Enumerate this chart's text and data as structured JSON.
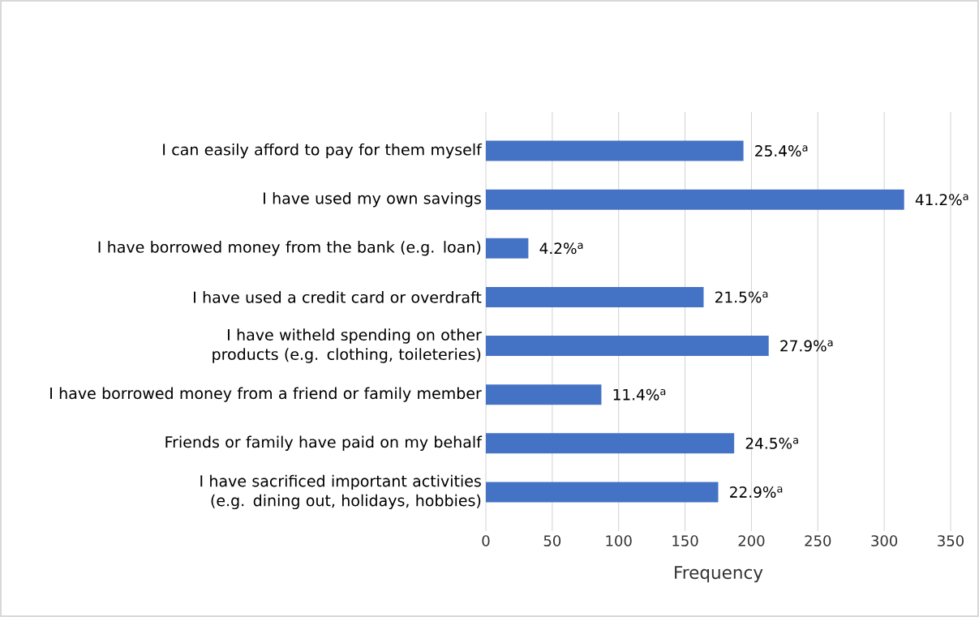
{
  "chart_data": {
    "type": "bar",
    "orientation": "horizontal",
    "xlabel": "Frequency",
    "categories": [
      "I can easily afford to pay for them myself",
      "I have used my own savings",
      "I have borrowed money from the bank (e.g. loan)",
      "I have used a credit card or overdraft",
      "I have witheld spending on other products (e.g. clothing, toileteries)",
      "I have borrowed money from a friend or family member",
      "Friends or family have paid on my behalf",
      "I have sacrificed important activities (e.g. dining out, holidays, hobbies)"
    ],
    "values": [
      194,
      315,
      32,
      164,
      213,
      87,
      187,
      175
    ],
    "annotations": [
      {
        "text": "25.4%$^{a}$",
        "x": 194,
        "y": "I can easily afford to pay for them myself"
      },
      {
        "text": "41.2%$^{a}$",
        "x": 315,
        "y": "I have used my own savings"
      },
      {
        "text": "4.2%$^{a}$",
        "x": 32,
        "y": "I have borrowed money from the bank (e.g. loan)"
      },
      {
        "text": "21.5%$^{a}$",
        "x": 164,
        "y": "I have used a credit card or overdraft"
      },
      {
        "text": "27.9%$^{a}$",
        "x": 213,
        "y": "I have witheld spending on other products (e.g. clothing, toileteries)"
      },
      {
        "text": "11.4%$^{a}$",
        "x": 87,
        "y": "I have borrowed money from a friend or family member"
      },
      {
        "text": "24.5%$^{a}$",
        "x": 187,
        "y": "Friends or family have paid on my behalf"
      },
      {
        "text": "22.9%$^{a}$",
        "x": 175,
        "y": "I have sacrificed important activities (e.g. dining out, holidays, hobbies)"
      }
    ],
    "color": "#4472c4",
    "xlim": [
      0,
      350
    ],
    "xticks": [
      0,
      50,
      100,
      150,
      200,
      250,
      300,
      350
    ],
    "grid": "x"
  }
}
